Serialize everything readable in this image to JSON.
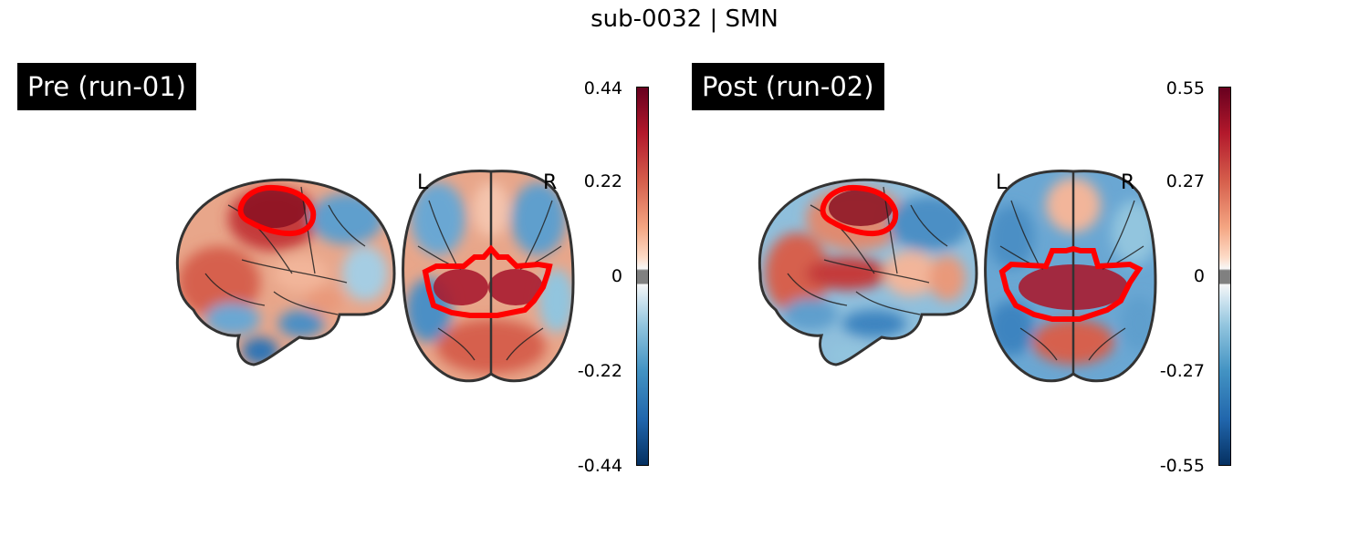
{
  "title": "sub-0032 | SMN",
  "panels": [
    {
      "label": "Pre (run-01)",
      "orient_left": "L",
      "orient_right": "R",
      "colorbar_ticks": [
        "0.44",
        "0.22",
        "0",
        "-0.22",
        "-0.44"
      ]
    },
    {
      "label": "Post (run-02)",
      "orient_left": "L",
      "orient_right": "R",
      "colorbar_ticks": [
        "0.55",
        "0.27",
        "0",
        "-0.27",
        "-0.55"
      ]
    }
  ],
  "colors": {
    "positive": "#b2182b",
    "negative": "#2166ac",
    "roi_outline": "#ff0000",
    "label_bg": "#000000"
  }
}
